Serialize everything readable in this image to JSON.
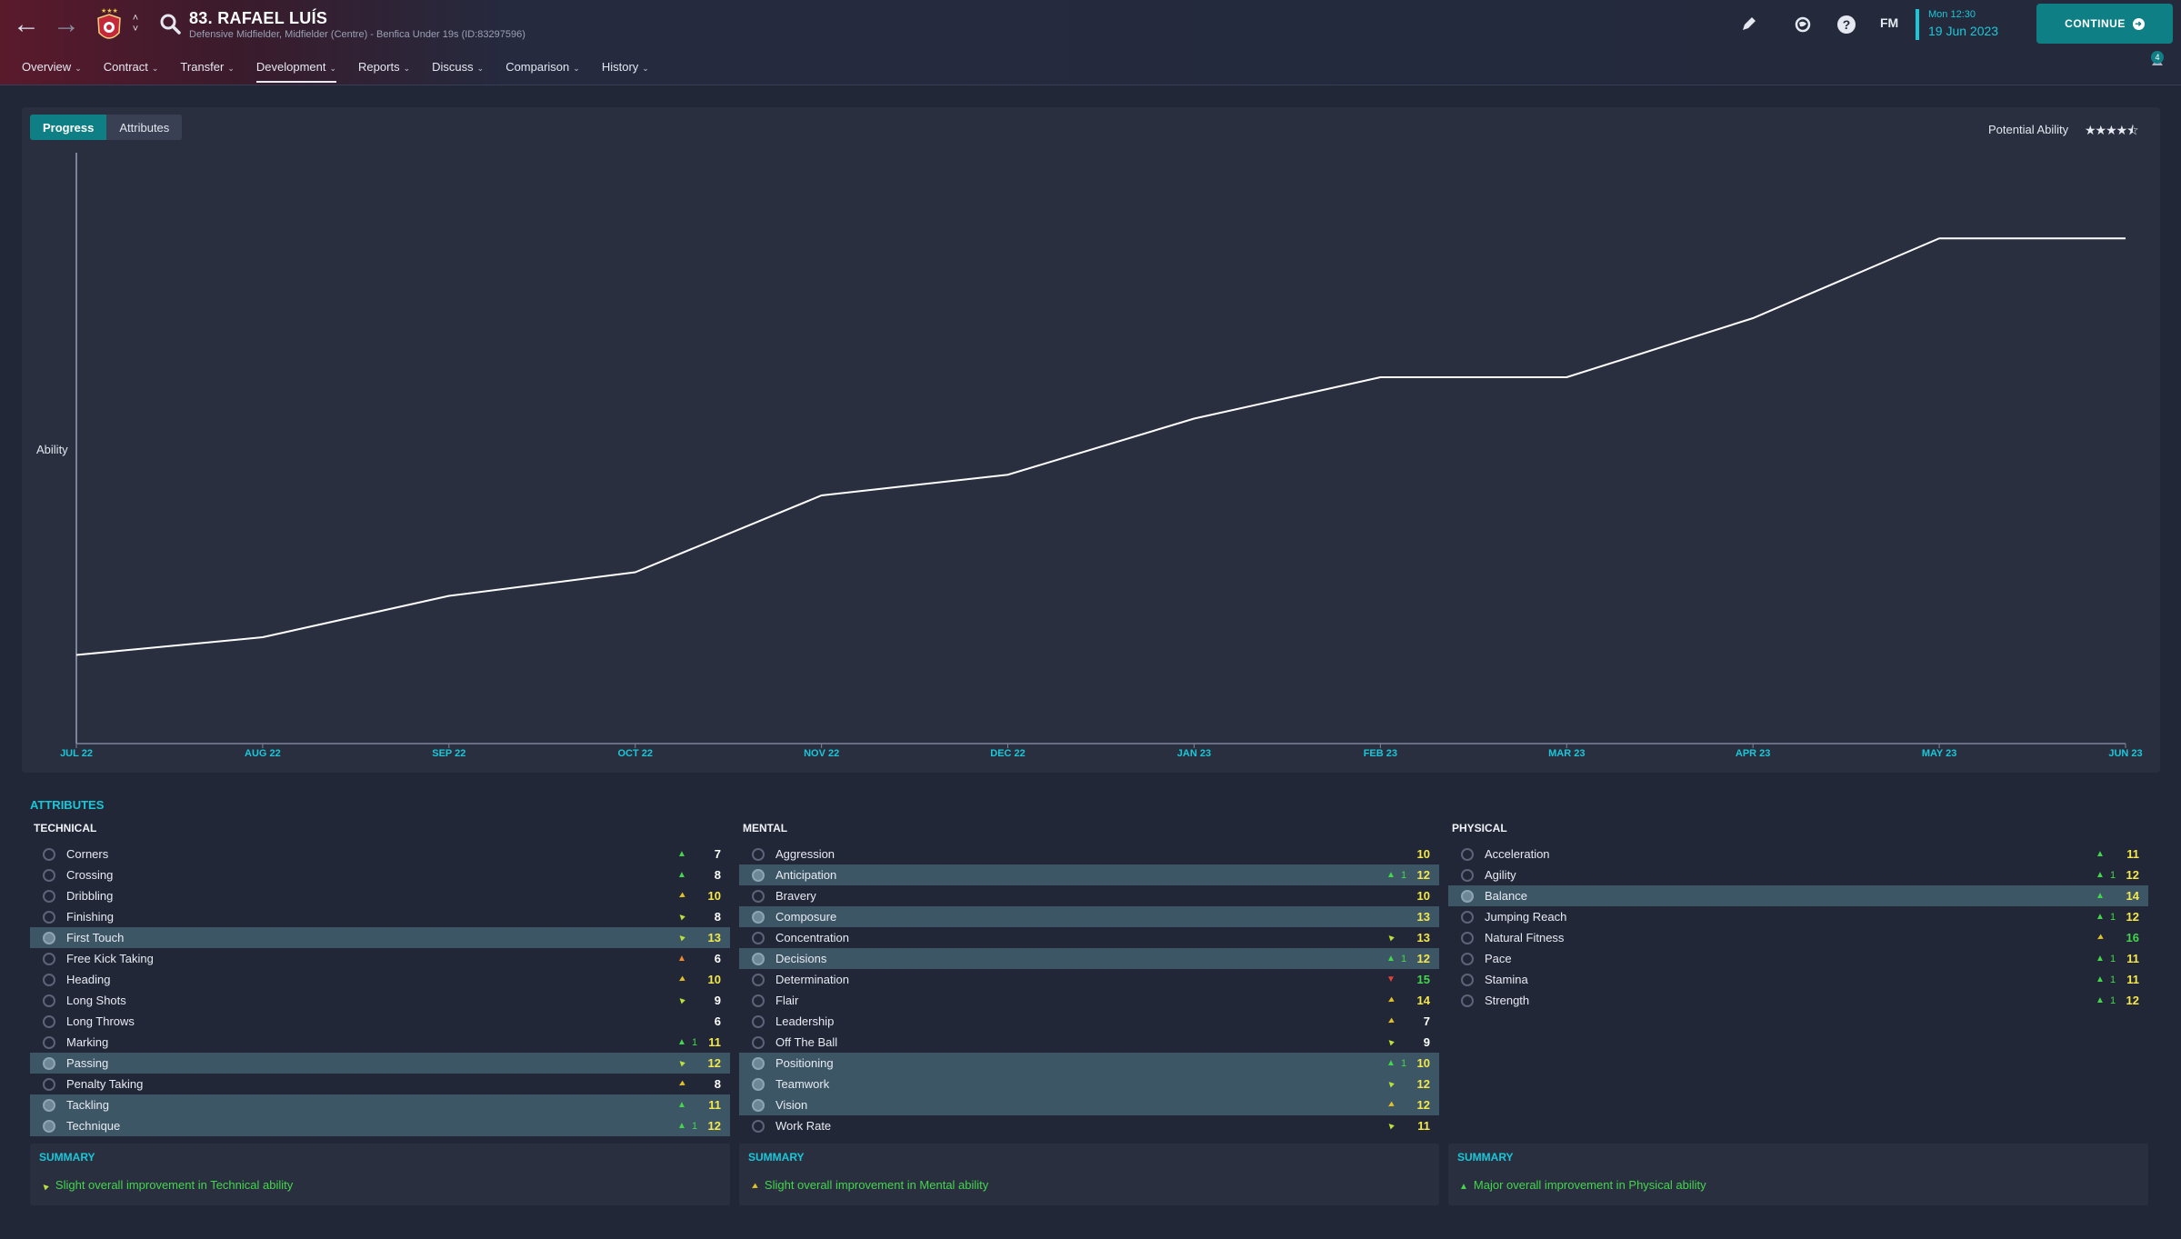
{
  "header": {
    "player_name": "83. RAFAEL LUÍS",
    "player_sub": "Defensive Midfielder, Midfielder (Centre) - Benfica Under 19s (ID:83297596)",
    "fm_label": "FM",
    "time": "Mon 12:30",
    "date": "19 Jun 2023",
    "continue_label": "CONTINUE",
    "notification_count": "4",
    "nav": [
      {
        "label": "Overview"
      },
      {
        "label": "Contract"
      },
      {
        "label": "Transfer"
      },
      {
        "label": "Development",
        "active": true
      },
      {
        "label": "Reports"
      },
      {
        "label": "Discuss"
      },
      {
        "label": "Comparison"
      },
      {
        "label": "History"
      }
    ]
  },
  "tabs": {
    "progress": "Progress",
    "attributes": "Attributes"
  },
  "potential": {
    "label": "Potential Ability",
    "stars": 4.5,
    "stars_max": 5
  },
  "chart_data": {
    "type": "line",
    "ylabel": "Ability",
    "xlabel": "",
    "x": [
      "JUL 22",
      "AUG 22",
      "SEP 22",
      "OCT 22",
      "NOV 22",
      "DEC 22",
      "JAN 23",
      "FEB 23",
      "MAR 23",
      "APR 23",
      "MAY 23",
      "JUN 23"
    ],
    "values": [
      15,
      18,
      25,
      29,
      42,
      45.5,
      55,
      62,
      62,
      72,
      85.5,
      85.5
    ],
    "ylim": [
      0,
      100
    ],
    "grid": false,
    "line_color": "#ffffff",
    "axis_color": "#7d8399",
    "tick_color": "#19c8d8"
  },
  "attributes": {
    "title": "ATTRIBUTES",
    "colors": {
      "up": "#43d64b",
      "slight": "#b9e23a",
      "neutral": "#e0c228",
      "down": "#e0443a",
      "value_hi": "#f5e84a",
      "value_green": "#43d64b",
      "value_white": "#ffffff"
    },
    "technical": {
      "title": "TECHNICAL",
      "rows": [
        {
          "name": "Corners",
          "arrow": "up",
          "change": "",
          "value": "7",
          "vcolor": "white",
          "hl": false
        },
        {
          "name": "Crossing",
          "arrow": "up",
          "change": "",
          "value": "8",
          "vcolor": "white",
          "hl": false
        },
        {
          "name": "Dribbling",
          "arrow": "neutral",
          "change": "",
          "value": "10",
          "vcolor": "yellow",
          "hl": false
        },
        {
          "name": "Finishing",
          "arrow": "slight",
          "change": "",
          "value": "8",
          "vcolor": "white",
          "hl": false
        },
        {
          "name": "First Touch",
          "arrow": "slight",
          "change": "",
          "value": "13",
          "vcolor": "yellow",
          "hl": true
        },
        {
          "name": "Free Kick Taking",
          "arrow": "orange",
          "change": "",
          "value": "6",
          "vcolor": "white",
          "hl": false
        },
        {
          "name": "Heading",
          "arrow": "neutral",
          "change": "",
          "value": "10",
          "vcolor": "yellow",
          "hl": false
        },
        {
          "name": "Long Shots",
          "arrow": "slight",
          "change": "",
          "value": "9",
          "vcolor": "white",
          "hl": false
        },
        {
          "name": "Long Throws",
          "arrow": "",
          "change": "",
          "value": "6",
          "vcolor": "white",
          "hl": false
        },
        {
          "name": "Marking",
          "arrow": "up",
          "change": "1",
          "value": "11",
          "vcolor": "yellow",
          "hl": false
        },
        {
          "name": "Passing",
          "arrow": "slight",
          "change": "",
          "value": "12",
          "vcolor": "yellow",
          "hl": true
        },
        {
          "name": "Penalty Taking",
          "arrow": "neutral",
          "change": "",
          "value": "8",
          "vcolor": "white",
          "hl": false
        },
        {
          "name": "Tackling",
          "arrow": "up",
          "change": "",
          "value": "11",
          "vcolor": "yellow",
          "hl": true
        },
        {
          "name": "Technique",
          "arrow": "up",
          "change": "1",
          "value": "12",
          "vcolor": "yellow",
          "hl": true
        }
      ],
      "summary_title": "SUMMARY",
      "summary_text": "Slight overall improvement in Technical ability",
      "summary_arrow": "slight"
    },
    "mental": {
      "title": "MENTAL",
      "rows": [
        {
          "name": "Aggression",
          "arrow": "",
          "change": "",
          "value": "10",
          "vcolor": "yellow",
          "hl": false
        },
        {
          "name": "Anticipation",
          "arrow": "up",
          "change": "1",
          "value": "12",
          "vcolor": "yellow",
          "hl": true
        },
        {
          "name": "Bravery",
          "arrow": "",
          "change": "",
          "value": "10",
          "vcolor": "yellow",
          "hl": false
        },
        {
          "name": "Composure",
          "arrow": "",
          "change": "",
          "value": "13",
          "vcolor": "yellow",
          "hl": true
        },
        {
          "name": "Concentration",
          "arrow": "slight",
          "change": "",
          "value": "13",
          "vcolor": "yellow",
          "hl": false
        },
        {
          "name": "Decisions",
          "arrow": "up",
          "change": "1",
          "value": "12",
          "vcolor": "yellow",
          "hl": true
        },
        {
          "name": "Determination",
          "arrow": "down",
          "change": "",
          "value": "15",
          "vcolor": "green",
          "hl": false
        },
        {
          "name": "Flair",
          "arrow": "neutral",
          "change": "",
          "value": "14",
          "vcolor": "yellow",
          "hl": false
        },
        {
          "name": "Leadership",
          "arrow": "neutral",
          "change": "",
          "value": "7",
          "vcolor": "white",
          "hl": false
        },
        {
          "name": "Off The Ball",
          "arrow": "slight",
          "change": "",
          "value": "9",
          "vcolor": "white",
          "hl": false
        },
        {
          "name": "Positioning",
          "arrow": "up",
          "change": "1",
          "value": "10",
          "vcolor": "yellow",
          "hl": true
        },
        {
          "name": "Teamwork",
          "arrow": "slight",
          "change": "",
          "value": "12",
          "vcolor": "yellow",
          "hl": true
        },
        {
          "name": "Vision",
          "arrow": "neutral",
          "change": "",
          "value": "12",
          "vcolor": "yellow",
          "hl": true
        },
        {
          "name": "Work Rate",
          "arrow": "slight",
          "change": "",
          "value": "11",
          "vcolor": "yellow",
          "hl": false
        }
      ],
      "summary_title": "SUMMARY",
      "summary_text": "Slight overall improvement in Mental ability",
      "summary_arrow": "neutral"
    },
    "physical": {
      "title": "PHYSICAL",
      "rows": [
        {
          "name": "Acceleration",
          "arrow": "up",
          "change": "",
          "value": "11",
          "vcolor": "yellow",
          "hl": false
        },
        {
          "name": "Agility",
          "arrow": "up",
          "change": "1",
          "value": "12",
          "vcolor": "yellow",
          "hl": false
        },
        {
          "name": "Balance",
          "arrow": "up",
          "change": "",
          "value": "14",
          "vcolor": "yellow",
          "hl": true
        },
        {
          "name": "Jumping Reach",
          "arrow": "up",
          "change": "1",
          "value": "12",
          "vcolor": "yellow",
          "hl": false
        },
        {
          "name": "Natural Fitness",
          "arrow": "neutral",
          "change": "",
          "value": "16",
          "vcolor": "green",
          "hl": false
        },
        {
          "name": "Pace",
          "arrow": "up",
          "change": "1",
          "value": "11",
          "vcolor": "yellow",
          "hl": false
        },
        {
          "name": "Stamina",
          "arrow": "up",
          "change": "1",
          "value": "11",
          "vcolor": "yellow",
          "hl": false
        },
        {
          "name": "Strength",
          "arrow": "up",
          "change": "1",
          "value": "12",
          "vcolor": "yellow",
          "hl": false
        }
      ],
      "summary_title": "SUMMARY",
      "summary_text": "Major overall improvement in Physical ability",
      "summary_arrow": "up"
    }
  }
}
